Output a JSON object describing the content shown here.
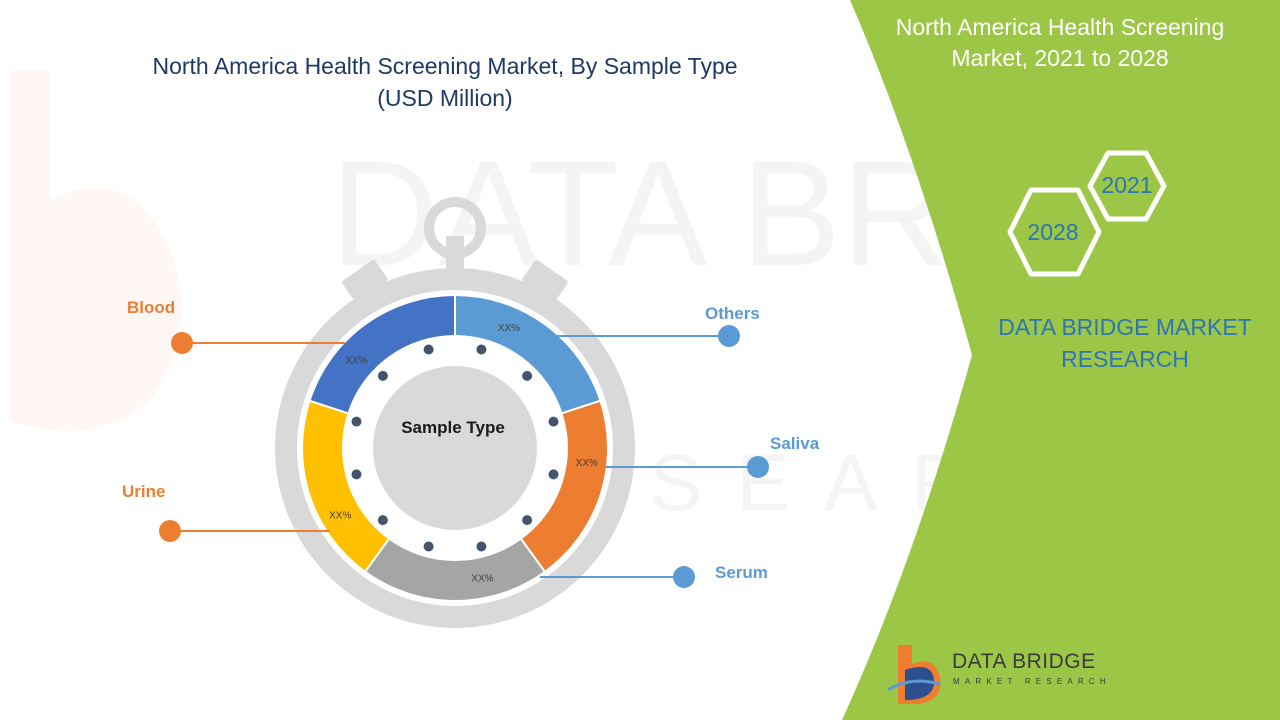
{
  "header": {
    "title_line1": "North America Health Screening Market, By Sample Type",
    "title_line2": "(USD Million)"
  },
  "right_panel": {
    "title_line1": "North America Health Screening",
    "title_line2": "Market, 2021 to 2028",
    "hex_years": [
      "2021",
      "2028"
    ],
    "company_line1": "DATA BRIDGE MARKET",
    "company_line2": "RESEARCH"
  },
  "logo": {
    "name": "DATA BRIDGE",
    "tagline": "MARKET RESEARCH"
  },
  "chart_data": {
    "type": "pie",
    "variant": "donut",
    "center_label": "Sample Type",
    "slices": [
      {
        "name": "Others",
        "value_label": "XX%",
        "share": 0.2,
        "color": "#5b9bd5",
        "label_color": "#5b9bd5"
      },
      {
        "name": "Saliva",
        "value_label": "XX%",
        "share": 0.2,
        "color": "#ed7d31",
        "label_color": "#5b9bd5"
      },
      {
        "name": "Serum",
        "value_label": "XX%",
        "share": 0.2,
        "color": "#a5a5a5",
        "label_color": "#5b9bd5"
      },
      {
        "name": "Urine",
        "value_label": "XX%",
        "share": 0.2,
        "color": "#ffc000",
        "label_color": "#ed7d31"
      },
      {
        "name": "Blood",
        "value_label": "XX%",
        "share": 0.2,
        "color": "#4472c4",
        "label_color": "#ed7d31"
      }
    ]
  },
  "colors": {
    "accent_green": "#9cc645",
    "title_navy": "#1f3864",
    "blue": "#5b9bd5",
    "orange": "#ed7d31",
    "stopwatch_gray": "#d9d9d9"
  }
}
